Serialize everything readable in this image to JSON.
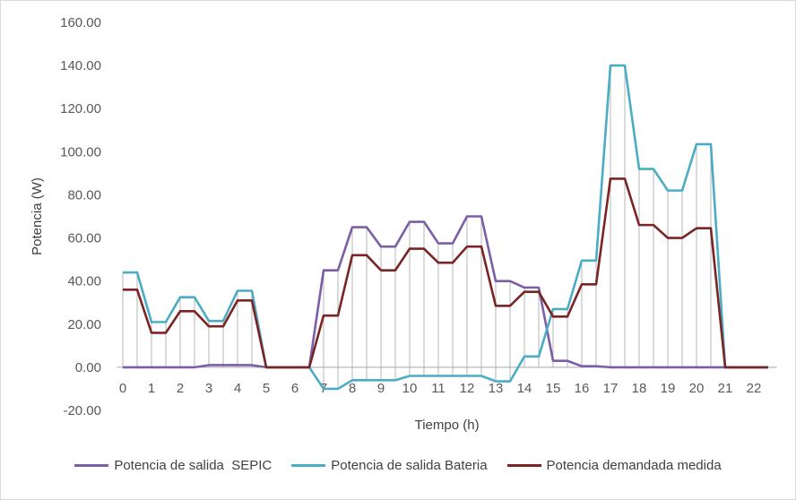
{
  "chart_data": {
    "type": "line",
    "xlabel": "Tiempo (h)",
    "ylabel": "Potencia (W)",
    "ylim": [
      -20,
      160
    ],
    "y_ticks": [
      "-20.00",
      "0.00",
      "20.00",
      "40.00",
      "60.00",
      "80.00",
      "100.00",
      "120.00",
      "140.00",
      "160.00"
    ],
    "x_tick_labels": [
      "0",
      "1",
      "2",
      "3",
      "4",
      "5",
      "6",
      "7",
      "8",
      "9",
      "10",
      "11",
      "12",
      "13",
      "14",
      "15",
      "16",
      "17",
      "18",
      "19",
      "20",
      "21",
      "22"
    ],
    "x_range": [
      -0.2,
      22.8
    ],
    "grid": false,
    "vertical_drop_lines": true,
    "legend_position": "bottom",
    "series": [
      {
        "name": "Potencia de salida  SEPIC",
        "color": "#7b5ea7",
        "x": [
          0,
          0.5,
          1,
          1.5,
          2,
          2.5,
          3,
          3.5,
          4,
          4.5,
          5,
          5.5,
          6,
          6.5,
          7,
          7.5,
          8,
          8.5,
          9,
          9.5,
          10,
          10.5,
          11,
          11.5,
          12,
          12.5,
          13,
          13.5,
          14,
          14.5,
          15,
          15.5,
          16,
          16.5,
          17,
          17.5,
          18,
          18.5,
          19,
          19.5,
          20,
          20.5,
          21,
          21.5,
          22,
          22.5
        ],
        "values": [
          0,
          0,
          0,
          0,
          0,
          0,
          1,
          1,
          1,
          1,
          0,
          0,
          0,
          0,
          45,
          45,
          65,
          65,
          56,
          56,
          67.5,
          67.5,
          57.5,
          57.5,
          70,
          70,
          40,
          40,
          37,
          37,
          3,
          3,
          0.5,
          0.5,
          0,
          0,
          0,
          0,
          0,
          0,
          0,
          0,
          0,
          0,
          0,
          0
        ]
      },
      {
        "name": "Potencia de salida Bateria",
        "color": "#4bacc6",
        "x": [
          0,
          0.5,
          1,
          1.5,
          2,
          2.5,
          3,
          3.5,
          4,
          4.5,
          5,
          5.5,
          6,
          6.5,
          7,
          7.5,
          8,
          8.5,
          9,
          9.5,
          10,
          10.5,
          11,
          11.5,
          12,
          12.5,
          13,
          13.5,
          14,
          14.5,
          15,
          15.5,
          16,
          16.5,
          17,
          17.5,
          18,
          18.5,
          19,
          19.5,
          20,
          20.5,
          21,
          21.5,
          22,
          22.5
        ],
        "values": [
          44,
          44,
          21,
          21,
          32.5,
          32.5,
          21.5,
          21.5,
          35.5,
          35.5,
          0,
          0,
          0,
          0,
          -10,
          -10,
          -6,
          -6,
          -6,
          -6,
          -4,
          -4,
          -4,
          -4,
          -4,
          -4,
          -6.5,
          -6.5,
          5,
          5,
          27,
          27,
          49.5,
          49.5,
          140,
          140,
          92,
          92,
          82,
          82,
          103.5,
          103.5,
          0,
          0,
          0,
          0
        ]
      },
      {
        "name": "Potencia demandada medida",
        "color": "#7b2424",
        "x": [
          0,
          0.5,
          1,
          1.5,
          2,
          2.5,
          3,
          3.5,
          4,
          4.5,
          5,
          5.5,
          6,
          6.5,
          7,
          7.5,
          8,
          8.5,
          9,
          9.5,
          10,
          10.5,
          11,
          11.5,
          12,
          12.5,
          13,
          13.5,
          14,
          14.5,
          15,
          15.5,
          16,
          16.5,
          17,
          17.5,
          18,
          18.5,
          19,
          19.5,
          20,
          20.5,
          21,
          21.5,
          22,
          22.5
        ],
        "values": [
          36,
          36,
          16,
          16,
          26,
          26,
          19,
          19,
          31,
          31,
          0,
          0,
          0,
          0,
          24,
          24,
          52,
          52,
          45,
          45,
          55,
          55,
          48.5,
          48.5,
          56,
          56,
          28.5,
          28.5,
          35,
          35,
          23.5,
          23.5,
          38.5,
          38.5,
          87.5,
          87.5,
          66,
          66,
          60,
          60,
          64.5,
          64.5,
          0,
          0,
          0,
          0
        ]
      }
    ]
  }
}
